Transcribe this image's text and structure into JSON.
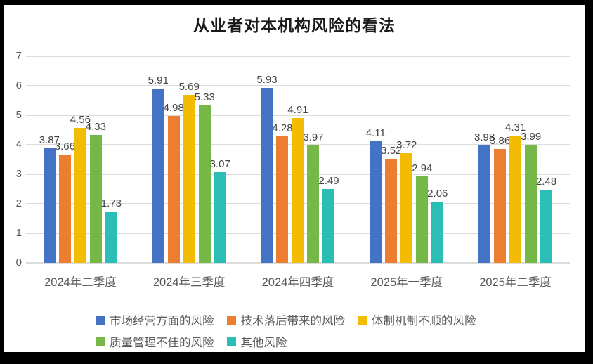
{
  "title": "从业者对本机构风险的看法",
  "chart_data": {
    "type": "bar",
    "title": "从业者对本机构风险的看法",
    "categories": [
      "2024年二季度",
      "2024年三季度",
      "2024年四季度",
      "2025年一季度",
      "2025年二季度"
    ],
    "series": [
      {
        "name": "市场经营方面的风险",
        "color": "#4472C4",
        "values": [
          3.87,
          5.91,
          5.93,
          4.11,
          3.98
        ]
      },
      {
        "name": "技术落后带来的风险",
        "color": "#ED7D31",
        "values": [
          3.66,
          4.98,
          4.28,
          3.52,
          3.86
        ]
      },
      {
        "name": "体制机制不顺的风险",
        "color": "#F2BC02",
        "values": [
          4.56,
          5.69,
          4.91,
          3.72,
          4.31
        ]
      },
      {
        "name": "质量管理不佳的风险",
        "color": "#76B848",
        "values": [
          4.33,
          5.33,
          3.97,
          2.94,
          3.99
        ]
      },
      {
        "name": "其他风险",
        "color": "#2BBEB4",
        "values": [
          1.73,
          3.07,
          2.49,
          2.06,
          2.48
        ]
      }
    ],
    "ylim": [
      0,
      7
    ],
    "yticks": [
      0,
      1,
      2,
      3,
      4,
      5,
      6,
      7
    ],
    "grid": true,
    "data_labels": true,
    "legend_position": "bottom"
  },
  "colors": {
    "frame_border": "#000000",
    "chart_background": "#FFFFFF",
    "gridline": "#DCDCDC",
    "axis_text": "#595959",
    "data_label_text": "#444444",
    "title_text": "#1A1A1A"
  }
}
